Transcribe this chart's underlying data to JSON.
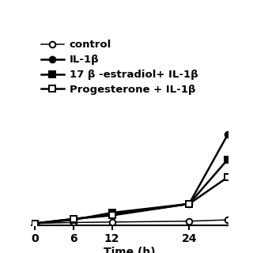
{
  "x": [
    0,
    6,
    12,
    24,
    30
  ],
  "series": {
    "control": [
      0.0,
      0.01,
      0.015,
      0.025,
      0.04
    ],
    "IL1b": [
      0.0,
      0.05,
      0.1,
      0.22,
      1.0
    ],
    "estradiol_IL1b": [
      0.0,
      0.04,
      0.12,
      0.22,
      0.72
    ],
    "progesterone_IL1b": [
      0.0,
      0.05,
      0.09,
      0.22,
      0.52
    ]
  },
  "legend_labels": [
    "control",
    "IL-1β",
    "17 β -estradiol+ IL-1β",
    "Progesterone + IL-1β"
  ],
  "xlabel": "Time (h)",
  "xticks": [
    0,
    6,
    12,
    24
  ],
  "xlim": [
    -0.5,
    30
  ],
  "ylim": [
    -0.02,
    1.05
  ],
  "background_color": "#ffffff",
  "line_color": "#000000",
  "linewidth": 1.8,
  "fontsize_legend": 9.5,
  "fontsize_axis": 10,
  "fontsize_ticks": 10
}
